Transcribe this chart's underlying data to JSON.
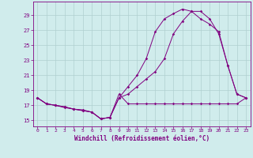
{
  "bg_color": "#d0ecec",
  "line_color": "#800080",
  "grid_color": "#b0d0d0",
  "xlabel": "Windchill (Refroidissement éolien,°C)",
  "ylabel_ticks": [
    15,
    17,
    19,
    21,
    23,
    25,
    27,
    29
  ],
  "xlim": [
    -0.5,
    23.5
  ],
  "ylim": [
    14.2,
    30.8
  ],
  "xticks": [
    0,
    1,
    2,
    3,
    4,
    5,
    6,
    7,
    8,
    9,
    10,
    11,
    12,
    13,
    14,
    15,
    16,
    17,
    18,
    19,
    20,
    21,
    22,
    23
  ],
  "series1_x": [
    0,
    1,
    2,
    3,
    4,
    5,
    6,
    7,
    8,
    9,
    10,
    11,
    12,
    13,
    14,
    15,
    16,
    17,
    18,
    19,
    20,
    21,
    22,
    23
  ],
  "series1_y": [
    18.0,
    17.2,
    17.0,
    16.7,
    16.5,
    16.4,
    16.1,
    15.2,
    15.4,
    18.5,
    17.2,
    17.2,
    17.2,
    17.2,
    17.2,
    17.2,
    17.2,
    17.2,
    17.2,
    17.2,
    17.2,
    17.2,
    17.2,
    18.0
  ],
  "series2_x": [
    0,
    1,
    2,
    3,
    4,
    5,
    6,
    7,
    8,
    9,
    10,
    11,
    12,
    13,
    14,
    15,
    16,
    17,
    18,
    19,
    20,
    21,
    22,
    23
  ],
  "series2_y": [
    18.0,
    17.2,
    17.0,
    16.8,
    16.5,
    16.3,
    16.1,
    15.2,
    15.4,
    18.0,
    18.5,
    19.5,
    20.5,
    21.5,
    23.2,
    26.5,
    28.2,
    29.5,
    29.5,
    28.5,
    26.5,
    22.3,
    18.5,
    18.0
  ],
  "series3_x": [
    0,
    1,
    2,
    3,
    4,
    5,
    6,
    7,
    8,
    9,
    10,
    11,
    12,
    13,
    14,
    15,
    16,
    17,
    18,
    19,
    20,
    21,
    22,
    23
  ],
  "series3_y": [
    18.0,
    17.2,
    17.0,
    16.8,
    16.5,
    16.3,
    16.1,
    15.2,
    15.4,
    18.0,
    19.5,
    21.0,
    23.2,
    26.8,
    28.5,
    29.2,
    29.8,
    29.5,
    28.5,
    27.8,
    26.8,
    22.3,
    18.5,
    18.0
  ]
}
